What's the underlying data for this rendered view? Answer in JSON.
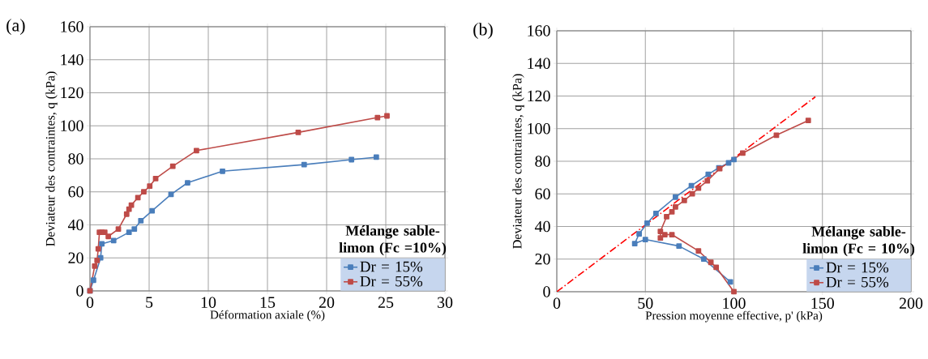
{
  "chart_data": [
    {
      "type": "line",
      "xlabel": "Déformation axiale (%)",
      "ylabel": "Deviateur des contraintes, q (kPa)",
      "legend_title": "Mélange sable-limon (Fc =10%)",
      "annotations": [
        "(a)"
      ],
      "xlim": [
        0,
        30
      ],
      "xticks": [
        0,
        5,
        10,
        15,
        20,
        25,
        30
      ],
      "ylim": [
        0,
        160
      ],
      "yticks": [
        0,
        20,
        40,
        60,
        80,
        100,
        120,
        140,
        160
      ],
      "grid": true,
      "legend": "bottom right",
      "marker": "square",
      "series": [
        {
          "name": "Dr = 15%",
          "color": "#4a7ebb",
          "x": [
            0,
            0.3,
            0.9,
            1.0,
            2.0,
            3.3,
            3.75,
            4.3,
            5.25,
            6.85,
            8.25,
            11.2,
            18.1,
            22.1,
            24.2
          ],
          "values": [
            0,
            6.5,
            20,
            28.5,
            30.5,
            35.5,
            37.5,
            42.5,
            48.5,
            58.5,
            65.5,
            72.5,
            76.5,
            79.5,
            81
          ]
        },
        {
          "name": "Dr = 55%",
          "color": "#be4b48",
          "x": [
            0,
            0.4,
            0.6,
            0.7,
            0.8,
            1.0,
            1.25,
            1.55,
            2.4,
            3.1,
            3.3,
            3.5,
            4.05,
            4.55,
            5.05,
            5.55,
            7.0,
            9.0,
            17.6,
            24.3,
            25.1
          ],
          "values": [
            0,
            15,
            18.5,
            25.5,
            35.5,
            35.5,
            35.5,
            33,
            37.5,
            46.5,
            49.5,
            52,
            56.5,
            60,
            63.5,
            68,
            75.5,
            85,
            96,
            105,
            106
          ]
        }
      ]
    },
    {
      "type": "line",
      "xlabel": "Pression moyenne effective, p' (kPa)",
      "ylabel": "Deviateur des contraintes, q (kPa)",
      "legend_title": "Mélange sable-limon (Fc = 10%)",
      "annotations": [
        "(b)"
      ],
      "xlim": [
        0,
        200
      ],
      "xticks": [
        0,
        50,
        100,
        150,
        200
      ],
      "ylim": [
        0,
        160
      ],
      "yticks": [
        0,
        20,
        40,
        60,
        80,
        100,
        120,
        140,
        160
      ],
      "grid": true,
      "legend": "bottom right",
      "marker": "square",
      "series": [
        {
          "type": "line",
          "color": "#ff0000",
          "marker": "none",
          "line_style": "dashdot",
          "x": [
            0,
            146
          ],
          "values": [
            0,
            119.5
          ]
        },
        {
          "name": "Dr = 15%",
          "color": "#4a7ebb",
          "x": [
            98,
            83,
            69,
            50,
            44,
            46.5,
            51,
            56,
            67,
            76,
            85.5,
            91.5,
            97,
            100
          ],
          "values": [
            6,
            20,
            28,
            32,
            29.5,
            35.5,
            42,
            48,
            58,
            65,
            72,
            76,
            79,
            81
          ]
        },
        {
          "name": "Dr = 55%",
          "color": "#be4b48",
          "x": [
            100,
            90,
            87,
            80,
            65,
            61,
            58.5,
            58.5,
            62,
            65,
            67,
            72,
            76.5,
            80,
            85,
            92,
            105,
            124,
            142
          ],
          "values": [
            0,
            15,
            18,
            25,
            35,
            35,
            33,
            37,
            46,
            49,
            52,
            56,
            60,
            63.5,
            68,
            75.5,
            85,
            96,
            105
          ]
        }
      ]
    }
  ]
}
